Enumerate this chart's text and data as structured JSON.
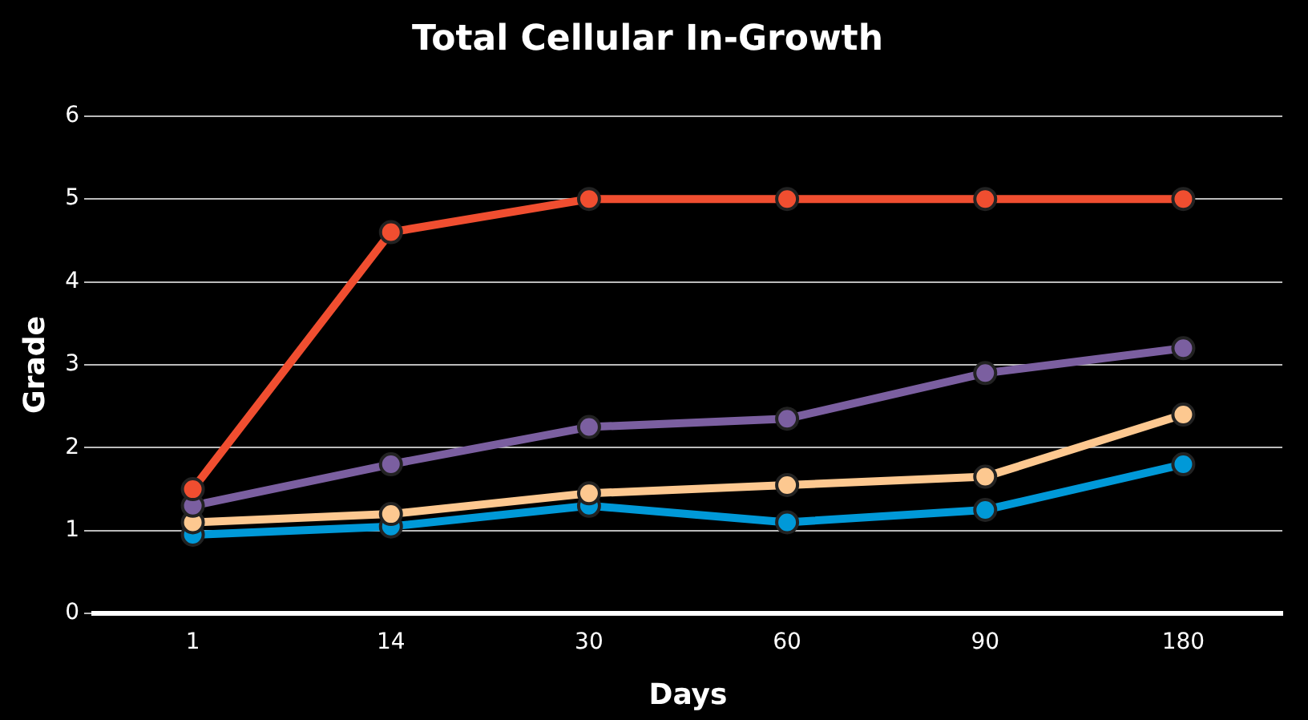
{
  "chart_data": {
    "type": "line",
    "title": "Total Cellular In-Growth",
    "xlabel": "Days",
    "ylabel": "Grade",
    "categories": [
      "1",
      "14",
      "30",
      "60",
      "90",
      "180"
    ],
    "series": [
      {
        "color": "#f04e30",
        "values": [
          1.5,
          4.6,
          5,
          5,
          5,
          5
        ]
      },
      {
        "color": "#7b5fa0",
        "values": [
          1.3,
          1.8,
          2.25,
          2.35,
          2.9,
          3.2
        ]
      },
      {
        "color": "#fdc890",
        "values": [
          1.1,
          1.2,
          1.45,
          1.55,
          1.65,
          2.4
        ]
      },
      {
        "color": "#0099d8",
        "values": [
          0.95,
          1.05,
          1.3,
          1.1,
          1.25,
          1.8
        ]
      }
    ],
    "ylim": [
      0,
      6
    ],
    "yticks": [
      0,
      1,
      2,
      3,
      4,
      5,
      6
    ],
    "grid": "y",
    "legend": false,
    "marker": "circle",
    "line_style": "solid"
  }
}
